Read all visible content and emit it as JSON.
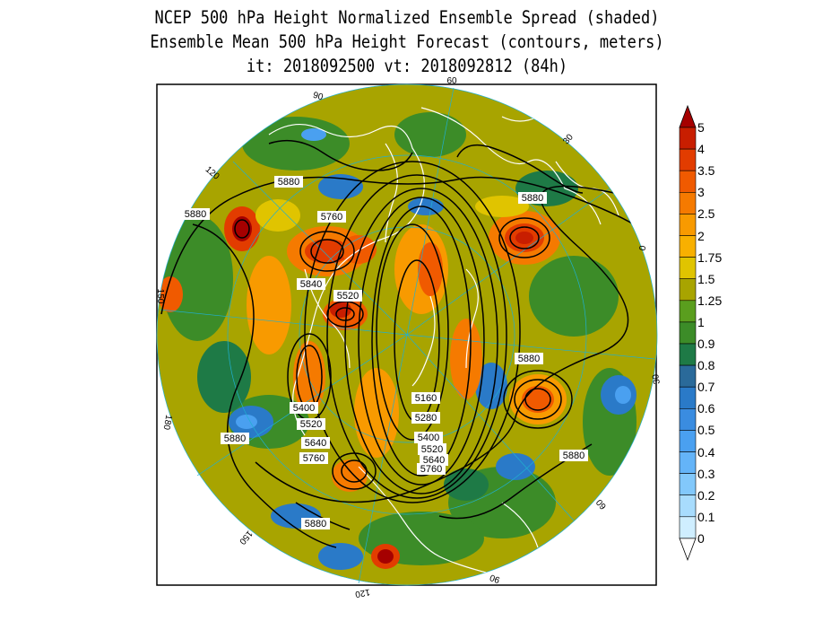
{
  "title": {
    "line1": "NCEP 500 hPa Height Normalized Ensemble Spread (shaded)",
    "line2": "Ensemble Mean 500 hPa Height Forecast (contours, meters)",
    "line3": "it: 2018092500      vt: 2018092812 (84h)"
  },
  "colorbar": {
    "levels": [
      "5",
      "4",
      "3.5",
      "3",
      "2.5",
      "2",
      "1.75",
      "1.5",
      "1.25",
      "1",
      "0.9",
      "0.8",
      "0.7",
      "0.6",
      "0.5",
      "0.4",
      "0.3",
      "0.2",
      "0.1",
      "0"
    ],
    "colors": [
      "#a50000",
      "#c81e00",
      "#e23c00",
      "#f05a00",
      "#f57a00",
      "#f89a00",
      "#f8b000",
      "#e0c400",
      "#a8a400",
      "#5a9e1e",
      "#3c8c28",
      "#1e7a46",
      "#2a6a9a",
      "#2a7ac8",
      "#3a8ce0",
      "#4aa0f0",
      "#64b4f8",
      "#82c8fb",
      "#a8dcfd",
      "#cfeeff"
    ]
  },
  "map": {
    "projection": "north polar stereographic",
    "longitude_labels": [
      "60",
      "30",
      "0",
      "30",
      "60",
      "90",
      "120",
      "150",
      "180",
      "150",
      "120",
      "90"
    ],
    "contour_labels": [
      "5880",
      "5880",
      "5880",
      "5760",
      "5840",
      "5520",
      "5880",
      "5400",
      "5520",
      "5640",
      "5760",
      "5160",
      "5280",
      "5400",
      "5520",
      "5640",
      "5760",
      "5880",
      "5880",
      "5880"
    ]
  }
}
